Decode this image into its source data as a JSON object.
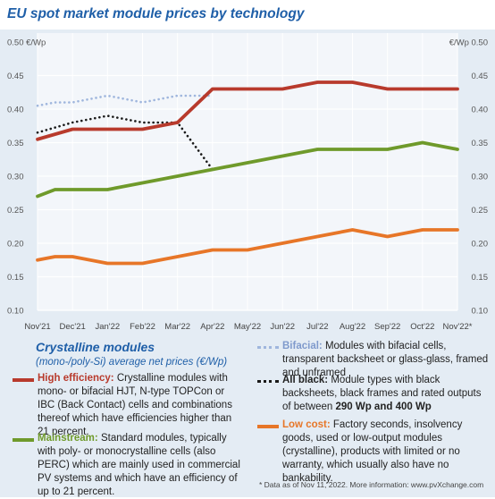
{
  "header": {
    "title": "EU spot market module prices by technology"
  },
  "chart_data": {
    "type": "line",
    "categories": [
      "Nov'21",
      "Dec'21",
      "Jan'22",
      "Feb'22",
      "Mar'22",
      "Apr'22",
      "May'22",
      "Jun'22",
      "Jul'22",
      "Aug'22",
      "Sep'22",
      "Oct'22",
      "Nov'22*"
    ],
    "y_ticks": [
      "0.50 €/Wp",
      "0.45",
      "0.40",
      "0.35",
      "0.30",
      "0.25",
      "0.20",
      "0.15",
      "0.10"
    ],
    "y_ticks_right": [
      "€/Wp 0.50",
      "0.45",
      "0.40",
      "0.35",
      "0.30",
      "0.25",
      "0.20",
      "0.15",
      "0.10"
    ],
    "ylim": [
      0.1,
      0.5
    ],
    "grid": true,
    "series": [
      {
        "name": "Bifacial",
        "color": "#9fb6dd",
        "style": "dotted",
        "x": [
          0,
          0.5,
          1,
          2,
          3,
          4,
          5
        ],
        "values": [
          0.405,
          0.41,
          0.41,
          0.42,
          0.41,
          0.42,
          0.42
        ]
      },
      {
        "name": "All black",
        "color": "#1a1a1a",
        "style": "dotted",
        "x": [
          0,
          1,
          2,
          3,
          4,
          5,
          5.5,
          6
        ],
        "values": [
          0.365,
          0.38,
          0.39,
          0.38,
          0.38,
          0.31,
          0.315,
          0.32
        ]
      },
      {
        "name": "High efficiency",
        "color": "#b83a2c",
        "style": "solid",
        "x": [
          0,
          1,
          2,
          3,
          4,
          5,
          6,
          7,
          8,
          9,
          10,
          11,
          12
        ],
        "values": [
          0.355,
          0.37,
          0.37,
          0.37,
          0.38,
          0.43,
          0.43,
          0.43,
          0.44,
          0.44,
          0.43,
          0.43,
          0.43
        ]
      },
      {
        "name": "Mainstream",
        "color": "#6f9a2b",
        "style": "solid",
        "x": [
          0,
          0.5,
          1,
          2,
          3,
          4,
          5,
          6,
          7,
          8,
          9,
          10,
          11,
          12
        ],
        "values": [
          0.27,
          0.28,
          0.28,
          0.28,
          0.29,
          0.3,
          0.31,
          0.32,
          0.33,
          0.34,
          0.34,
          0.34,
          0.35,
          0.34
        ]
      },
      {
        "name": "Low cost",
        "color": "#e77628",
        "style": "solid",
        "x": [
          0,
          0.5,
          1,
          2,
          3,
          4,
          5,
          6,
          7,
          8,
          9,
          10,
          11,
          12
        ],
        "values": [
          0.175,
          0.18,
          0.18,
          0.17,
          0.17,
          0.18,
          0.19,
          0.19,
          0.2,
          0.21,
          0.22,
          0.21,
          0.22,
          0.22
        ]
      }
    ]
  },
  "legend": {
    "heading": "Crystalline modules",
    "subheading": "(mono-/poly-Si) average net prices (€/Wp)",
    "items": {
      "high_efficiency": {
        "key": "High efficiency:",
        "text": "Crystalline modules with mono- or bifacial HJT, N-type TOPCon or IBC (Back Contact) cells and combinations thereof which have efficiencies higher than 21 percent."
      },
      "mainstream": {
        "key": "Mainstream:",
        "text": "Standard modules, typically with poly- or monocrystalline cells (also PERC) which are mainly used in commercial PV systems and which have an efficiency of up to 21 percent."
      },
      "bifacial": {
        "key": "Bifacial:",
        "text": "Modules with bifacial cells, transparent backsheet or glass-glass, framed and unframed"
      },
      "all_black": {
        "key": "All black:",
        "text": "Module types with black backsheets, black frames and rated outputs of between",
        "bold_tail": "290 Wp and 400 Wp"
      },
      "low_cost": {
        "key": "Low cost:",
        "text": "Factory seconds, insolvency goods, used or low-output modules (crystalline), products with limited or no warranty, which usually also have no bankability."
      }
    }
  },
  "footnote": "* Data as of Nov 11, 2022. More information: www.pvXchange.com"
}
